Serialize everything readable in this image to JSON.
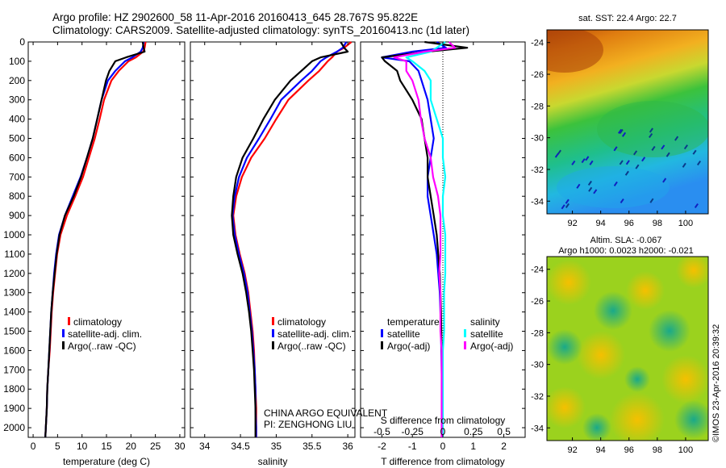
{
  "title": {
    "line1": "Argo profile: HZ 2902600_58 11-Apr-2016 20160413_645 28.767S 95.822E",
    "line2": "Climatology: CARS2009. Satellite-adjusted climatology: synTS_20160413.nc (1d later)"
  },
  "credits": {
    "program": "CHINA ARGO EQUIVALENT",
    "pi": "PI: ZENGHONG LIU",
    "watermark": "©IMOS 23-Apr-2016 20:39:32"
  },
  "colors": {
    "climatology": "#ff0000",
    "satellite": "#0000ff",
    "argo": "#000000",
    "satellite_s": "#00ffff",
    "argo_s": "#ff00ff"
  },
  "legend": {
    "climatology": "climatology",
    "satellite_adj": "satellite-adj. clim.",
    "argo": "Argo(..raw -QC)",
    "temperature": "temperature",
    "salinity": "salinity",
    "satellite": "satellite",
    "argo_adj": "Argo(-adj)"
  },
  "chart_data": [
    {
      "type": "line",
      "panel": "temperature",
      "xlabel": "temperature (deg C)",
      "xlim": [
        -1,
        31
      ],
      "ylim": [
        2050,
        0
      ],
      "x_ticks": [
        "0",
        "5",
        "10",
        "15",
        "20",
        "25",
        "30"
      ],
      "y_ticks": [
        "0",
        "100",
        "200",
        "300",
        "400",
        "500",
        "600",
        "700",
        "800",
        "900",
        "1000",
        "1100",
        "1200",
        "1300",
        "1400",
        "1500",
        "1600",
        "1700",
        "1800",
        "1900",
        "2000"
      ],
      "depth": [
        0,
        30,
        50,
        80,
        100,
        150,
        200,
        300,
        400,
        500,
        600,
        700,
        800,
        900,
        1000,
        1100,
        1200,
        1300,
        1400,
        1500,
        1600,
        1700,
        1800,
        1900,
        2000,
        2050
      ],
      "series": [
        {
          "name": "climatology",
          "values": [
            23.0,
            22.8,
            22.5,
            21.0,
            19.5,
            17.5,
            16.0,
            14.5,
            13.6,
            12.6,
            11.4,
            10.2,
            8.6,
            6.9,
            5.6,
            4.9,
            4.5,
            4.1,
            3.8,
            3.6,
            3.4,
            3.1,
            2.9,
            2.8,
            2.6,
            2.5
          ]
        },
        {
          "name": "satellite-adj. clim.",
          "values": [
            22.6,
            22.4,
            22.0,
            20.3,
            18.8,
            16.8,
            15.3,
            14.0,
            13.1,
            12.2,
            11.0,
            9.7,
            8.1,
            6.5,
            5.3,
            4.7,
            4.3,
            4.0,
            3.7,
            3.5,
            3.3,
            3.1,
            2.9,
            2.8,
            2.6,
            2.5
          ]
        },
        {
          "name": "Argo(..raw -QC)",
          "values": [
            22.4,
            22.6,
            22.8,
            19.0,
            16.8,
            15.6,
            14.9,
            14.0,
            13.1,
            12.2,
            11.0,
            9.8,
            8.3,
            6.5,
            5.4,
            4.8,
            4.4,
            4.0,
            3.7,
            3.5,
            3.3,
            3.1,
            2.9,
            2.8,
            2.6,
            2.5
          ]
        }
      ]
    },
    {
      "type": "line",
      "panel": "salinity",
      "xlabel": "salinity",
      "xlim": [
        33.8,
        36.1
      ],
      "ylim": [
        2050,
        0
      ],
      "x_ticks": [
        "34",
        "34.5",
        "35",
        "35.5",
        "36"
      ],
      "depth": [
        0,
        30,
        50,
        80,
        100,
        150,
        200,
        300,
        400,
        500,
        600,
        700,
        800,
        900,
        1000,
        1100,
        1200,
        1300,
        1400,
        1500,
        1600,
        1700,
        1800,
        1900,
        2000,
        2050
      ],
      "series": [
        {
          "name": "climatology",
          "values": [
            36.05,
            35.95,
            35.85,
            35.78,
            35.72,
            35.6,
            35.45,
            35.17,
            35.0,
            34.84,
            34.65,
            34.52,
            34.44,
            34.4,
            34.43,
            34.49,
            34.56,
            34.61,
            34.64,
            34.67,
            34.69,
            34.7,
            34.71,
            34.72,
            34.72,
            34.72
          ]
        },
        {
          "name": "satellite-adj. clim.",
          "values": [
            35.98,
            35.93,
            35.85,
            35.7,
            35.62,
            35.5,
            35.35,
            35.07,
            34.92,
            34.76,
            34.59,
            34.48,
            34.42,
            34.39,
            34.42,
            34.48,
            34.55,
            34.6,
            34.63,
            34.66,
            34.68,
            34.7,
            34.71,
            34.71,
            34.72,
            34.72
          ]
        },
        {
          "name": "Argo(..raw -QC)",
          "values": [
            35.9,
            35.95,
            36.0,
            35.62,
            35.5,
            35.35,
            35.2,
            34.98,
            34.82,
            34.68,
            34.53,
            34.44,
            34.4,
            34.38,
            34.4,
            34.46,
            34.53,
            34.58,
            34.62,
            34.65,
            34.67,
            34.69,
            34.7,
            34.71,
            34.71,
            34.71
          ]
        }
      ]
    },
    {
      "type": "line",
      "panel": "difference",
      "xlabel": "T difference from climatology",
      "xlabel_top": "S difference from climatology",
      "xlim": [
        -2.7,
        2.7
      ],
      "ylim": [
        2050,
        0
      ],
      "x_ticks_T": [
        "-2",
        "-1",
        "0",
        "1",
        "2"
      ],
      "x_ticks_S": [
        "-0.5",
        "-0.25",
        "0",
        "0.25",
        "0.5"
      ],
      "depth": [
        0,
        30,
        50,
        80,
        100,
        150,
        200,
        300,
        400,
        500,
        600,
        700,
        800,
        900,
        1000,
        1100,
        1200,
        1300,
        1400,
        1500,
        1600,
        1700,
        1800,
        1900,
        2000,
        2050
      ],
      "series": [
        {
          "name": "temperature satellite",
          "values": [
            -0.2,
            0.1,
            -1.0,
            -2.0,
            -1.1,
            -0.8,
            -0.7,
            -0.5,
            -0.4,
            -0.3,
            -0.4,
            -0.5,
            -0.5,
            -0.4,
            -0.3,
            -0.2,
            -0.15,
            -0.1,
            -0.08,
            -0.06,
            -0.05,
            -0.04,
            -0.03,
            -0.02,
            -0.02,
            -0.02
          ]
        },
        {
          "name": "temperature Argo(-adj)",
          "values": [
            -0.6,
            0.8,
            -0.5,
            -2.0,
            -1.9,
            -1.5,
            -1.4,
            -1.0,
            -0.7,
            -0.6,
            -0.5,
            -0.5,
            -0.4,
            -0.3,
            -0.2,
            -0.15,
            -0.1,
            -0.08,
            -0.06,
            -0.05,
            -0.04,
            -0.03,
            -0.03,
            -0.02,
            -0.02,
            -0.02
          ]
        },
        {
          "name": "salinity satellite",
          "values": [
            0.02,
            -0.05,
            -0.1,
            -0.3,
            -0.25,
            -0.15,
            -0.1,
            -0.1,
            -0.05,
            0.0,
            0.0,
            0.02,
            0.0,
            0.0,
            0.02,
            0.02,
            0.02,
            0.01,
            0.01,
            0.01,
            0.0,
            0.0,
            0.0,
            0.0,
            0.0,
            0.0
          ]
        },
        {
          "name": "salinity Argo(-adj)",
          "values": [
            0.05,
            0.1,
            -0.15,
            -0.4,
            -0.3,
            -0.3,
            -0.25,
            -0.2,
            -0.18,
            -0.15,
            -0.1,
            -0.08,
            -0.04,
            -0.02,
            -0.02,
            -0.02,
            -0.03,
            -0.02,
            -0.02,
            -0.02,
            -0.01,
            -0.01,
            -0.01,
            -0.01,
            -0.01,
            -0.01
          ]
        }
      ]
    },
    {
      "type": "heatmap",
      "panel": "sst-map",
      "title": "sat. SST: 22.4 Argo: 22.7",
      "x_ticks": [
        "92",
        "94",
        "96",
        "98",
        "100"
      ],
      "y_ticks": [
        "-24",
        "-26",
        "-28",
        "-30",
        "-32",
        "-34"
      ],
      "xlim": [
        90.2,
        101.6
      ],
      "ylim": [
        -34.8,
        -23.2
      ]
    },
    {
      "type": "heatmap",
      "panel": "sla-map",
      "title_line1": "Altim. SLA: -0.067",
      "title_line2": "Argo h1000: 0.0023 h2000: -0.021",
      "x_ticks": [
        "92",
        "94",
        "96",
        "98",
        "100"
      ],
      "y_ticks": [
        "-24",
        "-26",
        "-28",
        "-30",
        "-32",
        "-34"
      ],
      "xlim": [
        90.2,
        101.6
      ],
      "ylim": [
        -34.8,
        -23.2
      ]
    }
  ]
}
